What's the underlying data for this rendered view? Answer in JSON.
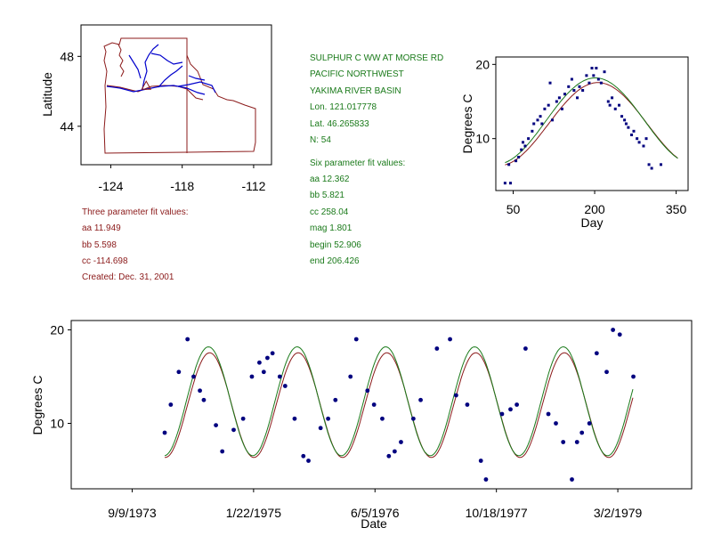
{
  "station": {
    "name": "SULPHUR C WW AT MORSE RD",
    "region": "PACIFIC NORTHWEST",
    "basin": "YAKIMA RIVER BASIN",
    "lon": "Lon. 121.017778",
    "lat": "Lat. 46.265833",
    "n": "N: 54"
  },
  "three_param": {
    "heading": "Three parameter fit values:",
    "aa": "aa 11.949",
    "bb": "bb 5.598",
    "cc": "cc -114.698",
    "created": "Created:   Dec. 31, 2001"
  },
  "six_param": {
    "heading": "Six parameter fit values:",
    "aa": "aa 12.362",
    "bb": "bb 5.821",
    "cc": "cc 258.04",
    "mag": "mag 1.801",
    "begin": "begin 52.906",
    "end": "end 206.426"
  },
  "colors": {
    "three_fit": "#8b1a1a",
    "six_fit": "#1a7a1a",
    "points": "#00007f",
    "rivers": "#0000cc",
    "borders": "#8b1a1a"
  },
  "chart_data": [
    {
      "type": "map",
      "ylabel": "Latitude",
      "xticks": [
        "-124",
        "-118",
        "-112"
      ],
      "yticks": [
        "48",
        "44"
      ],
      "xlim": [
        -126.5,
        -110.5
      ],
      "ylim": [
        41.8,
        49.8
      ],
      "station_marker": {
        "lon": -121.02,
        "lat": 46.27
      }
    },
    {
      "type": "scatter",
      "xlabel": "Day",
      "ylabel": "Degrees C",
      "xticks": [
        "50",
        "200",
        "350"
      ],
      "yticks": [
        "20",
        "10"
      ],
      "xlim": [
        18,
        372
      ],
      "ylim": [
        3,
        21
      ],
      "points": [
        [
          35,
          4.0
        ],
        [
          42,
          6.5
        ],
        [
          45,
          4.0
        ],
        [
          55,
          7.0
        ],
        [
          60,
          7.5
        ],
        [
          65,
          8.5
        ],
        [
          68,
          9.5
        ],
        [
          72,
          9.0
        ],
        [
          78,
          10.0
        ],
        [
          85,
          11.0
        ],
        [
          88,
          12.0
        ],
        [
          95,
          12.5
        ],
        [
          100,
          13.0
        ],
        [
          103,
          12.0
        ],
        [
          108,
          14.0
        ],
        [
          115,
          14.5
        ],
        [
          118,
          17.5
        ],
        [
          122,
          12.5
        ],
        [
          130,
          15.0
        ],
        [
          135,
          15.5
        ],
        [
          140,
          14.0
        ],
        [
          145,
          16.0
        ],
        [
          152,
          17.0
        ],
        [
          158,
          18.0
        ],
        [
          162,
          16.5
        ],
        [
          168,
          15.5
        ],
        [
          172,
          17.0
        ],
        [
          178,
          16.5
        ],
        [
          185,
          18.5
        ],
        [
          190,
          17.5
        ],
        [
          195,
          19.5
        ],
        [
          198,
          18.5
        ],
        [
          203,
          19.5
        ],
        [
          207,
          18.0
        ],
        [
          212,
          17.5
        ],
        [
          218,
          19.0
        ],
        [
          225,
          15.0
        ],
        [
          228,
          14.5
        ],
        [
          232,
          15.5
        ],
        [
          238,
          14.0
        ],
        [
          245,
          14.5
        ],
        [
          250,
          13.0
        ],
        [
          255,
          12.5
        ],
        [
          258,
          12.0
        ],
        [
          262,
          11.5
        ],
        [
          268,
          10.5
        ],
        [
          272,
          11.0
        ],
        [
          278,
          10.0
        ],
        [
          282,
          9.5
        ],
        [
          290,
          9.0
        ],
        [
          295,
          10.0
        ],
        [
          300,
          6.5
        ],
        [
          305,
          6.0
        ],
        [
          322,
          6.5
        ]
      ],
      "fit_three": {
        "aa": 11.949,
        "bb": 5.598,
        "cc": -114.698
      },
      "fit_six": {
        "aa": 12.362,
        "bb": 5.821,
        "cc": 258.04,
        "mag": 1.801,
        "begin": 52.906,
        "end": 206.426
      }
    },
    {
      "type": "scatter",
      "xlabel": "Date",
      "ylabel": "Degrees C",
      "xticks": [
        "9/9/1973",
        "1/22/1975",
        "6/5/1976",
        "10/18/1977",
        "3/2/1979"
      ],
      "yticks": [
        "20",
        "10"
      ],
      "xlim": [
        "1973-01-01",
        "1979-12-31"
      ],
      "ylim": [
        3,
        21
      ],
      "points": [
        [
          "1974-01-21",
          9.0
        ],
        [
          "1974-02-15",
          12.0
        ],
        [
          "1974-03-20",
          15.5
        ],
        [
          "1974-04-25",
          19.0
        ],
        [
          "1974-05-20",
          15.0
        ],
        [
          "1974-06-15",
          13.5
        ],
        [
          "1974-07-01",
          12.5
        ],
        [
          "1974-08-20",
          9.8
        ],
        [
          "1974-09-15",
          7.0
        ],
        [
          "1974-11-01",
          9.3
        ],
        [
          "1974-12-10",
          10.5
        ],
        [
          "1975-01-15",
          15.0
        ],
        [
          "1975-02-15",
          16.5
        ],
        [
          "1975-03-05",
          15.5
        ],
        [
          "1975-03-20",
          17.0
        ],
        [
          "1975-04-10",
          17.5
        ],
        [
          "1975-05-10",
          15.0
        ],
        [
          "1975-06-01",
          14.0
        ],
        [
          "1975-07-10",
          10.5
        ],
        [
          "1975-08-15",
          6.5
        ],
        [
          "1975-09-05",
          6.0
        ],
        [
          "1975-10-25",
          9.5
        ],
        [
          "1975-11-25",
          10.5
        ],
        [
          "1975-12-25",
          12.5
        ],
        [
          "1976-02-25",
          15.0
        ],
        [
          "1976-03-20",
          19.0
        ],
        [
          "1976-05-05",
          13.5
        ],
        [
          "1976-06-01",
          12.0
        ],
        [
          "1976-07-05",
          10.5
        ],
        [
          "1976-08-01",
          6.5
        ],
        [
          "1976-08-25",
          7.0
        ],
        [
          "1976-09-20",
          8.0
        ],
        [
          "1976-11-10",
          10.5
        ],
        [
          "1976-12-10",
          12.5
        ],
        [
          "1977-02-15",
          18.0
        ],
        [
          "1977-04-10",
          19.0
        ],
        [
          "1977-05-05",
          13.0
        ],
        [
          "1977-06-20",
          12.0
        ],
        [
          "1977-08-15",
          6.0
        ],
        [
          "1977-09-05",
          4.0
        ],
        [
          "1977-11-10",
          11.0
        ],
        [
          "1977-12-15",
          11.5
        ],
        [
          "1978-01-10",
          12.0
        ],
        [
          "1978-02-15",
          18.0
        ],
        [
          "1978-05-20",
          11.0
        ],
        [
          "1978-06-20",
          10.0
        ],
        [
          "1978-07-20",
          8.0
        ],
        [
          "1978-08-25",
          4.0
        ],
        [
          "1978-09-15",
          8.0
        ],
        [
          "1978-10-05",
          9.0
        ],
        [
          "1978-11-05",
          10.0
        ],
        [
          "1978-12-05",
          17.5
        ],
        [
          "1979-01-15",
          15.5
        ],
        [
          "1979-02-10",
          20.0
        ],
        [
          "1979-03-10",
          19.5
        ],
        [
          "1979-05-05",
          15.0
        ]
      ]
    }
  ]
}
